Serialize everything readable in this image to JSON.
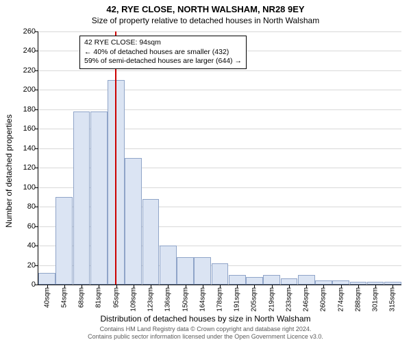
{
  "title": "42, RYE CLOSE, NORTH WALSHAM, NR28 9EY",
  "subtitle": "Size of property relative to detached houses in North Walsham",
  "ylabel": "Number of detached properties",
  "xlabel": "Distribution of detached houses by size in North Walsham",
  "chart": {
    "type": "histogram",
    "bar_fill": "#dbe4f3",
    "bar_stroke": "#8fa4c8",
    "grid_color": "#d8d8d8",
    "marker_color": "#cc0000",
    "background_color": "#ffffff",
    "ylim": [
      0,
      260
    ],
    "ytick_step": 20,
    "x_categories": [
      "40sqm",
      "54sqm",
      "68sqm",
      "81sqm",
      "95sqm",
      "109sqm",
      "123sqm",
      "136sqm",
      "150sqm",
      "164sqm",
      "178sqm",
      "191sqm",
      "205sqm",
      "219sqm",
      "233sqm",
      "246sqm",
      "260sqm",
      "274sqm",
      "288sqm",
      "301sqm",
      "315sqm"
    ],
    "bar_values": [
      12,
      90,
      178,
      178,
      210,
      130,
      88,
      40,
      28,
      28,
      22,
      10,
      8,
      10,
      6,
      10,
      4,
      4,
      3,
      3,
      3
    ],
    "marker_index": 3.93,
    "annotation": {
      "line1": "42 RYE CLOSE: 94sqm",
      "line2": "← 40% of detached houses are smaller (432)",
      "line3": "59% of semi-detached houses are larger (644) →"
    }
  },
  "attribution": {
    "line1": "Contains HM Land Registry data © Crown copyright and database right 2024.",
    "line2": "Contains public sector information licensed under the Open Government Licence v3.0."
  }
}
